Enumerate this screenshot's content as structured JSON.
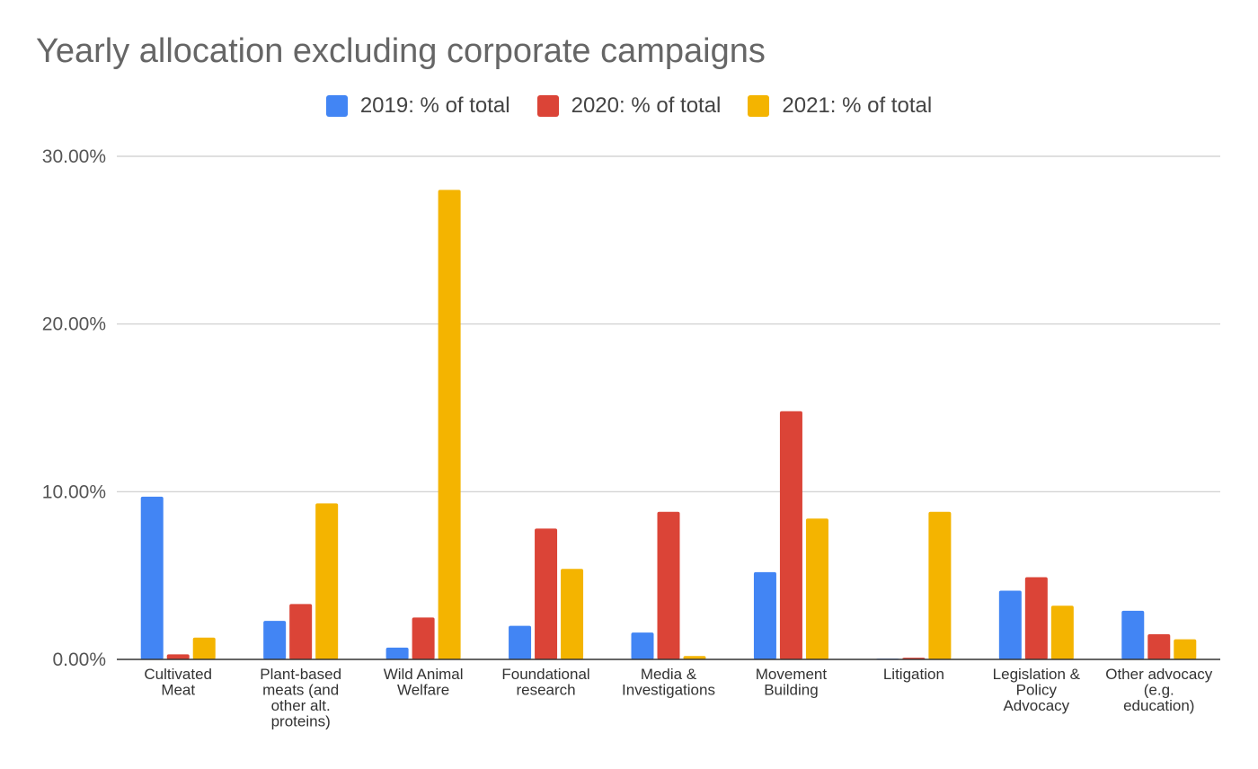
{
  "chart_data": {
    "type": "bar",
    "title": "Yearly allocation excluding corporate campaigns",
    "xlabel": "",
    "ylabel": "",
    "ylim": [
      0,
      30
    ],
    "yticks": [
      "0.00%",
      "10.00%",
      "20.00%",
      "30.00%"
    ],
    "ytick_values": [
      0,
      10,
      20,
      30
    ],
    "legend_position": "top-center",
    "categories": [
      [
        "Cultivated",
        "Meat"
      ],
      [
        "Plant-based",
        "meats (and",
        "other alt.",
        "proteins)"
      ],
      [
        "Wild Animal",
        "Welfare"
      ],
      [
        "Foundational",
        "research"
      ],
      [
        "Media &",
        "Investigations"
      ],
      [
        "Movement",
        "Building"
      ],
      [
        "Litigation"
      ],
      [
        "Legislation &",
        "Policy",
        "Advocacy"
      ],
      [
        "Other advocacy",
        "(e.g.",
        "education)"
      ]
    ],
    "series": [
      {
        "name": "2019: % of total",
        "color": "#4285F4",
        "values": [
          9.7,
          2.3,
          0.7,
          2.0,
          1.6,
          5.2,
          0.05,
          4.1,
          2.9
        ]
      },
      {
        "name": "2020: % of total",
        "color": "#DB4437",
        "values": [
          0.3,
          3.3,
          2.5,
          7.8,
          8.8,
          14.8,
          0.1,
          4.9,
          1.5
        ]
      },
      {
        "name": "2021: % of total",
        "color": "#F4B400",
        "values": [
          1.3,
          9.3,
          28.0,
          5.4,
          0.2,
          8.4,
          8.8,
          3.2,
          1.2
        ]
      }
    ]
  }
}
